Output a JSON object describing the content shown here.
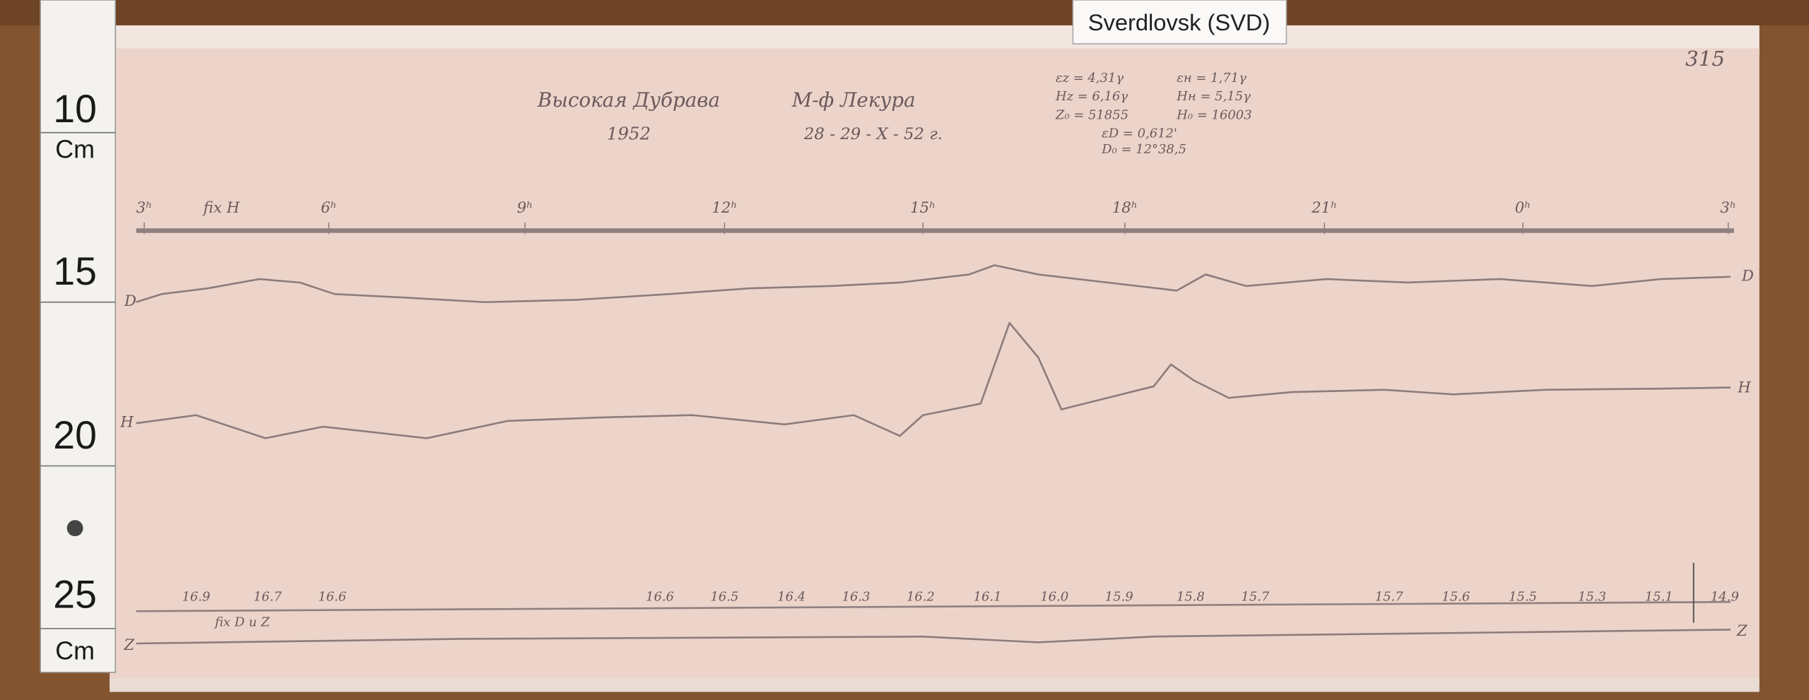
{
  "label": "Sverdlovsk (SVD)",
  "sheet_number": "315",
  "ruler": {
    "marks": [
      "10",
      "Cm",
      "15",
      "20",
      "25",
      "Cm"
    ]
  },
  "header": {
    "station": "Высокая Дубрава",
    "year": "1952",
    "instrument": "М-ф Лекура",
    "date": "28 - 29 - X - 52 г."
  },
  "constants": [
    "εz = 4,31γ",
    "εн = 1,71γ",
    "Hz = 6,16γ",
    "Hн = 5,15γ",
    "Z₀ = 51855",
    "H₀ = 16003",
    "εD = 0,612'",
    "D₀ = 12°38,5"
  ],
  "time_marks": [
    "3ʰ",
    "fix H",
    "6ʰ",
    "9ʰ",
    "12ʰ",
    "15ʰ",
    "18ʰ",
    "21ʰ",
    "0ʰ",
    "3ʰ"
  ],
  "traces": {
    "d_left": "D",
    "d_right": "D",
    "h_left": "H",
    "h_right": "H",
    "z_left": "Z",
    "z_right": "Z"
  },
  "temperature_marks": [
    "16.9",
    "16.7",
    "16.6",
    "16.6",
    "16.5",
    "16.4",
    "16.3",
    "16.2",
    "16.1",
    "16.0",
    "15.9",
    "15.8",
    "15.7",
    "15.7",
    "15.6",
    "15.5",
    "15.3",
    "15.1",
    "14.9"
  ],
  "fix_note": "fix D и Z"
}
